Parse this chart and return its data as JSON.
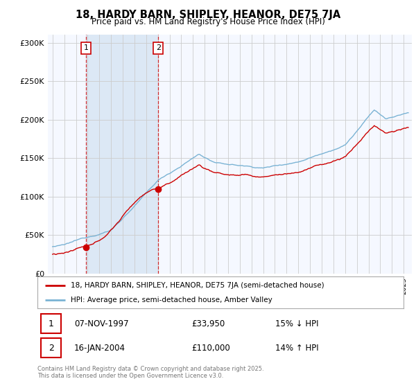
{
  "title": "18, HARDY BARN, SHIPLEY, HEANOR, DE75 7JA",
  "subtitle": "Price paid vs. HM Land Registry's House Price Index (HPI)",
  "sale1_date": "07-NOV-1997",
  "sale1_price": 33950,
  "sale1_label": "1",
  "sale1_note": "15% ↓ HPI",
  "sale2_date": "16-JAN-2004",
  "sale2_price": 110000,
  "sale2_label": "2",
  "sale2_note": "14% ↑ HPI",
  "legend_property": "18, HARDY BARN, SHIPLEY, HEANOR, DE75 7JA (semi-detached house)",
  "legend_hpi": "HPI: Average price, semi-detached house, Amber Valley",
  "footer": "Contains HM Land Registry data © Crown copyright and database right 2025.\nThis data is licensed under the Open Government Licence v3.0.",
  "property_color": "#cc0000",
  "hpi_color": "#7ab3d4",
  "shade_color": "#dce8f5",
  "background_color": "#f5f8ff",
  "grid_color": "#cccccc",
  "ylim": [
    0,
    310000
  ],
  "xlim_start": 1994.6,
  "xlim_end": 2025.7
}
